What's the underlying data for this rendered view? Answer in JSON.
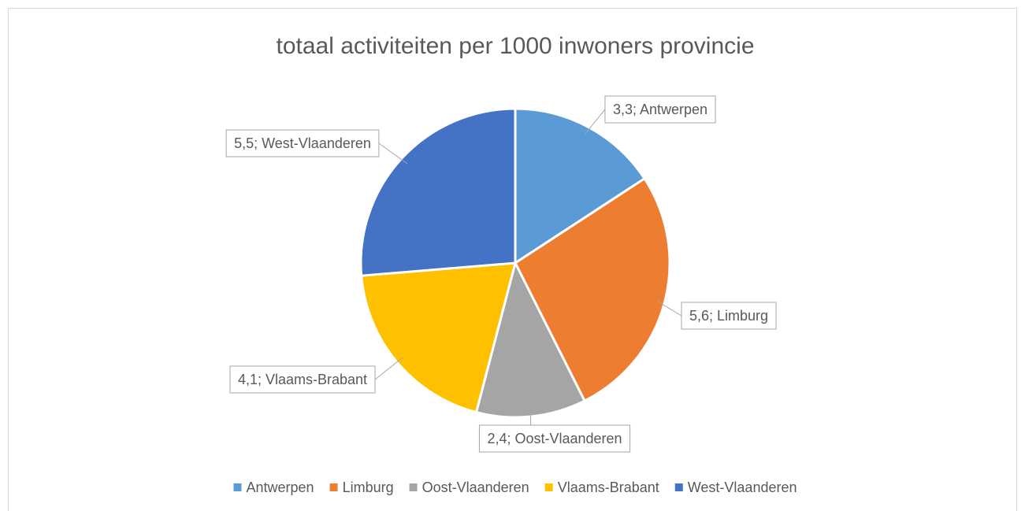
{
  "chart_data": {
    "type": "pie",
    "title": "totaal activiteiten per 1000 inwoners provincie",
    "categories": [
      "Antwerpen",
      "Limburg",
      "Oost-Vlaanderen",
      "Vlaams-Brabant",
      "West-Vlaanderen"
    ],
    "values": [
      3.3,
      5.6,
      2.4,
      4.1,
      5.5
    ],
    "value_labels": [
      "3,3; Antwerpen",
      "5,6; Limburg",
      "2,4; Oost-Vlaanderen",
      "4,1; Vlaams-Brabant",
      "5,5; West-Vlaanderen"
    ],
    "colors": [
      "#5b9bd5",
      "#ed7d31",
      "#a5a5a5",
      "#ffc000",
      "#4472c4"
    ],
    "legend": "bottom"
  }
}
